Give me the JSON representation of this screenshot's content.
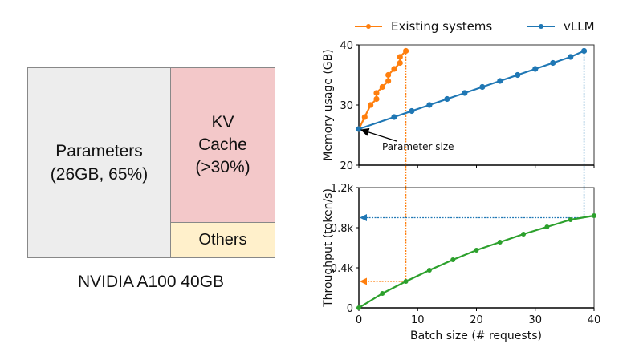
{
  "memory_layout": {
    "blocks": [
      {
        "id": "parameters",
        "label": "Parameters\n(26GB, 65%)",
        "color": "#ededed"
      },
      {
        "id": "kv_cache",
        "label": "KV\nCache\n(>30%)",
        "color": "#f3c8c9"
      },
      {
        "id": "others",
        "label": "Others",
        "color": "#fff0cb"
      }
    ],
    "caption": "NVIDIA A100 40GB"
  },
  "chart_data": [
    {
      "type": "line",
      "panel": "top",
      "title": "",
      "xlabel": "",
      "ylabel": "Memory usage (GB)",
      "xlim": [
        0,
        40
      ],
      "ylim": [
        20,
        40
      ],
      "xticks": [
        0,
        10,
        20,
        30,
        40
      ],
      "xtick_labels_visible": false,
      "yticks": [
        20,
        30,
        40
      ],
      "ytick_labels": [
        "20",
        "30",
        "40"
      ],
      "grid": false,
      "legend": {
        "placement": "top",
        "entries": [
          "Existing systems",
          "vLLM"
        ]
      },
      "series": [
        {
          "name": "Existing systems",
          "color": "#ff7f0e",
          "x": [
            0,
            1,
            2,
            3,
            3,
            4,
            5,
            5,
            6,
            7,
            7,
            8
          ],
          "y": [
            26,
            28,
            30,
            31,
            32,
            33,
            34,
            35,
            36,
            37,
            38,
            39
          ]
        },
        {
          "name": "vLLM",
          "color": "#1f77b4",
          "x": [
            0,
            6,
            9,
            12,
            15,
            18,
            21,
            24,
            27,
            30,
            33,
            36,
            38.3
          ],
          "y": [
            26,
            28,
            29,
            30,
            31,
            32,
            33,
            34,
            35,
            36,
            37,
            38,
            39
          ]
        }
      ],
      "annotations": [
        {
          "text": "Parameter size",
          "arrow_to": {
            "x": 0,
            "y": 26
          }
        }
      ],
      "guides": [
        {
          "series": "Existing systems",
          "type": "vertical-dotted",
          "x": 8,
          "color": "#ff7f0e"
        },
        {
          "series": "vLLM",
          "type": "vertical-dotted",
          "x": 38.3,
          "color": "#1f77b4"
        }
      ]
    },
    {
      "type": "line",
      "panel": "bottom",
      "title": "",
      "xlabel": "Batch size (# requests)",
      "ylabel": "Throughput (token/s)",
      "xlim": [
        0,
        40
      ],
      "ylim": [
        0,
        1200
      ],
      "xticks": [
        0,
        10,
        20,
        30,
        40
      ],
      "xtick_labels": [
        "0",
        "10",
        "20",
        "30",
        "40"
      ],
      "yticks": [
        0,
        400,
        800,
        1200
      ],
      "ytick_labels": [
        "0",
        "0.4k",
        "0.8k",
        "1.2k"
      ],
      "grid": false,
      "series": [
        {
          "name": "Throughput",
          "color": "#2ca02c",
          "x": [
            0,
            4,
            8,
            12,
            16,
            20,
            24,
            28,
            32,
            36,
            40
          ],
          "y": [
            0,
            144,
            264,
            376,
            480,
            576,
            656,
            736,
            808,
            880,
            920
          ]
        }
      ],
      "guides": [
        {
          "series": "Existing systems",
          "type": "horizontal-dotted-arrow",
          "x_from": 8,
          "y": 264,
          "color": "#ff7f0e"
        },
        {
          "series": "vLLM",
          "type": "horizontal-dotted-arrow",
          "x_from": 38.3,
          "y": 900,
          "color": "#1f77b4"
        }
      ]
    }
  ]
}
